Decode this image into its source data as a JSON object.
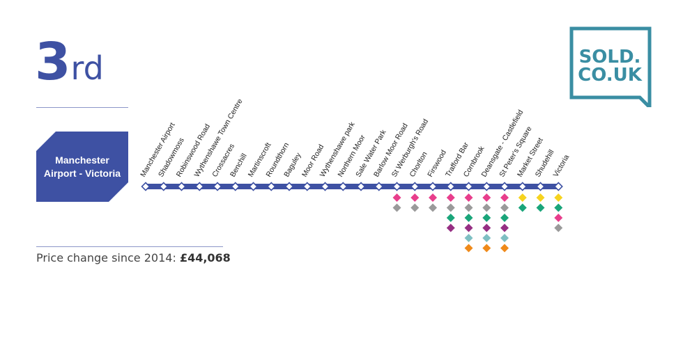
{
  "rank": {
    "number": "3",
    "suffix": "rd"
  },
  "route": {
    "line1": "Manchester",
    "line2": "Airport - Victoria"
  },
  "price": {
    "label": "Price change since 2014: ",
    "value": "£44,068"
  },
  "logo": {
    "line1": "SOLD.",
    "line2": "CO.UK",
    "color": "#3a8ea3"
  },
  "colors": {
    "line": "#3e51a3",
    "pink": "#e83e8c",
    "grey": "#9a9a9a",
    "green": "#1aa57a",
    "purple": "#962f83",
    "teal": "#7ebfc2",
    "orange": "#ef8a1a",
    "yellow": "#f6d31f"
  },
  "stations": [
    {
      "name": "Manchester Airport",
      "connections": []
    },
    {
      "name": "Shadowmoss",
      "connections": []
    },
    {
      "name": "Robinswood Road",
      "connections": []
    },
    {
      "name": "Wythenshawe Town Centre",
      "connections": []
    },
    {
      "name": "Crossacres",
      "connections": []
    },
    {
      "name": "Benchill",
      "connections": []
    },
    {
      "name": "Martinscroft",
      "connections": []
    },
    {
      "name": "Roundthorn",
      "connections": []
    },
    {
      "name": "Baguley",
      "connections": []
    },
    {
      "name": "Moor Road",
      "connections": []
    },
    {
      "name": "Wythenshawe park",
      "connections": []
    },
    {
      "name": "Northern Moor",
      "connections": []
    },
    {
      "name": "Sale Water Park",
      "connections": []
    },
    {
      "name": "Barlow Moor Road",
      "connections": []
    },
    {
      "name": "St Werburgh's Road",
      "connections": [
        "pink",
        "grey"
      ]
    },
    {
      "name": "Chorlton",
      "connections": [
        "pink",
        "grey"
      ]
    },
    {
      "name": "Firswood",
      "connections": [
        "pink",
        "grey"
      ]
    },
    {
      "name": "Trafford Bar",
      "connections": [
        "pink",
        "grey",
        "green",
        "purple"
      ]
    },
    {
      "name": "Cornbrook",
      "connections": [
        "pink",
        "grey",
        "green",
        "purple",
        "teal",
        "orange"
      ]
    },
    {
      "name": "Deansgate - Castlefield",
      "connections": [
        "pink",
        "grey",
        "green",
        "purple",
        "teal",
        "orange"
      ]
    },
    {
      "name": "St Peter's Square",
      "connections": [
        "pink",
        "grey",
        "green",
        "purple",
        "teal",
        "orange"
      ]
    },
    {
      "name": "Market Street",
      "connections": [
        "yellow",
        "green"
      ]
    },
    {
      "name": "Shudehill",
      "connections": [
        "yellow",
        "green"
      ]
    },
    {
      "name": "Victoria",
      "connections": [
        "yellow",
        "green",
        "pink",
        "grey"
      ]
    }
  ]
}
